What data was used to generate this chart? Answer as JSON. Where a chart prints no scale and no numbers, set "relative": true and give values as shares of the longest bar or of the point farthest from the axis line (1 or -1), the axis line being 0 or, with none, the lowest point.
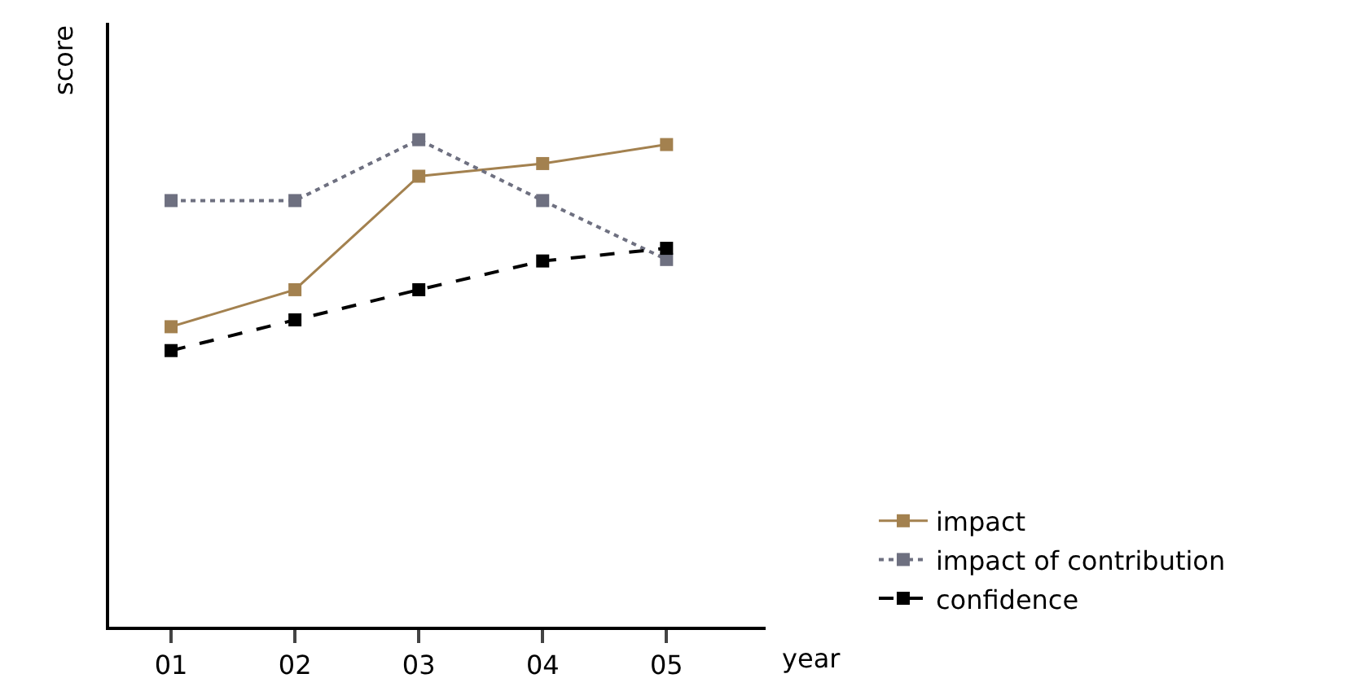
{
  "chart_data": {
    "type": "line",
    "relative": true,
    "xlabel": "year",
    "ylabel": "score",
    "categories": [
      "01",
      "02",
      "03",
      "04",
      "05"
    ],
    "legend": "bottom right",
    "marker": "square",
    "series": [
      {
        "name": "impact",
        "color": "#a3814f",
        "line_style": "solid",
        "values": [
          0.616,
          0.692,
          0.925,
          0.951,
          0.99
        ]
      },
      {
        "name": "impact of contribution",
        "color": "#6e7080",
        "line_style": "dotted",
        "values": [
          0.875,
          0.875,
          1,
          0.875,
          0.754
        ]
      },
      {
        "name": "confidence",
        "color": "#000000",
        "line_style": "dashed",
        "values": [
          0.567,
          0.63,
          0.692,
          0.751,
          0.777
        ]
      }
    ]
  }
}
